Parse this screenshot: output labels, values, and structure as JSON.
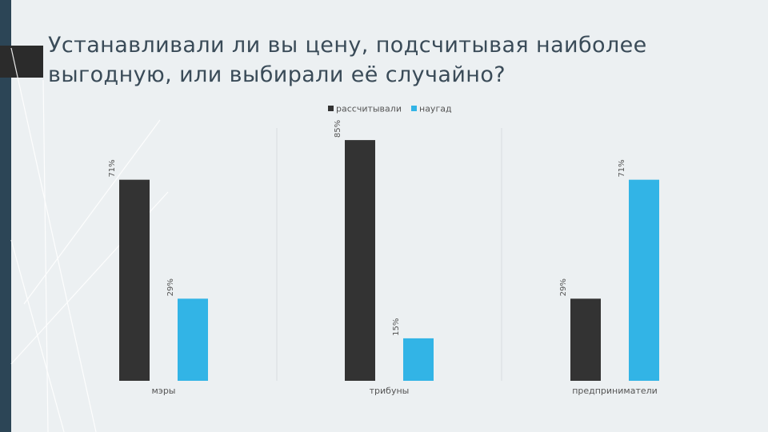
{
  "slide": {
    "title": "Устанавливали ли вы цену, подсчитывая наиболее выгодную, или выбирали её случайно?"
  },
  "colors": {
    "background": "#ecf0f2",
    "accent_dark": "#2c4556",
    "series_1": "#333333",
    "series_2": "#32b4e6",
    "text": "#3a4b58"
  },
  "chart_data": {
    "type": "bar",
    "categories": [
      "мэры",
      "трибуны",
      "предприниматели"
    ],
    "series": [
      {
        "name": "рассчитывали",
        "values": [
          71,
          85,
          29
        ],
        "labels": [
          "71%",
          "85%",
          "29%"
        ]
      },
      {
        "name": "наугад",
        "values": [
          29,
          15,
          71
        ],
        "labels": [
          "29%",
          "15%",
          "71%"
        ]
      }
    ],
    "ylim": [
      0,
      100
    ],
    "legend": "top-center",
    "grid": false,
    "data_labels": "vertical"
  }
}
